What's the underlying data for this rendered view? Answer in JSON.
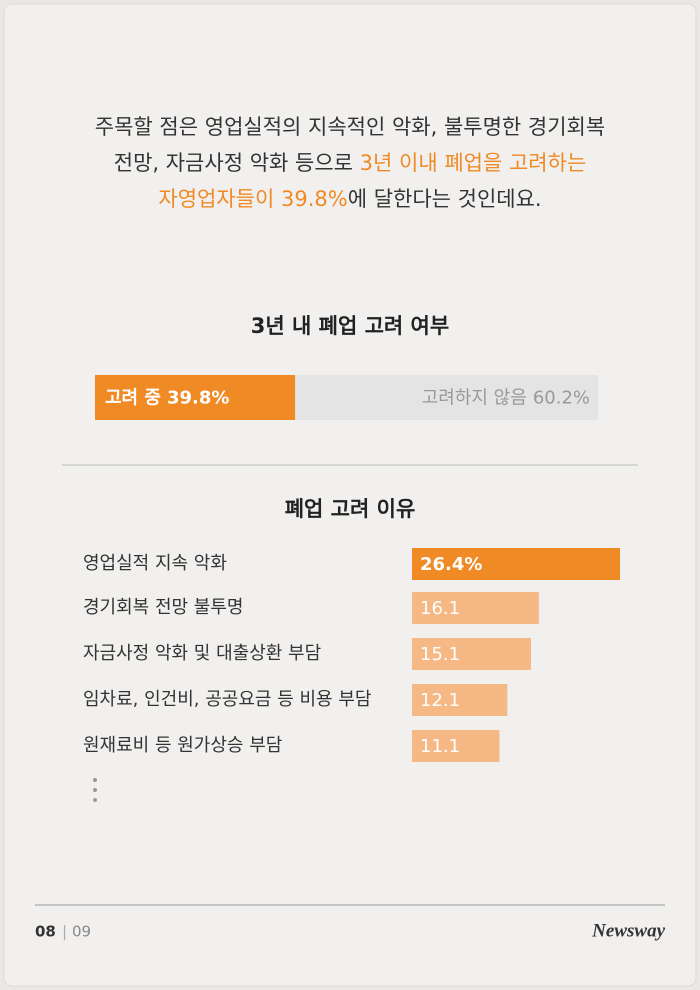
{
  "intro": {
    "lines": [
      [
        {
          "text": "주목할 점은 영업실적의 지속적인 악화, 불투명한 경기회복",
          "color": "#333333"
        }
      ],
      [
        {
          "text": "전망, 자금사정 악화 등으로 ",
          "color": "#333333"
        },
        {
          "text": "3년 이내 폐업을 고려하는",
          "color": "#f08a24"
        }
      ],
      [
        {
          "text": "자영업자들이 39.8%",
          "color": "#f08a24"
        },
        {
          "text": "에 달한다는 것인데요.",
          "color": "#333333"
        }
      ]
    ]
  },
  "chart_data": [
    {
      "type": "stacked-bar",
      "title": "3년 내 폐업 고려 여부",
      "series": [
        {
          "name": "고려 중",
          "color": "#f08a24",
          "values": [
            39.8
          ],
          "value_labels": [
            "39.8%"
          ]
        },
        {
          "name": "고려하지 않음",
          "color": "#e4e4e4",
          "values": [
            60.2
          ],
          "value_labels": [
            "60.2%"
          ]
        }
      ]
    },
    {
      "type": "bar",
      "title": "폐업 고려 이유",
      "categories": [
        "영업실적 지속 악화",
        "경기회복 전망 불투명",
        "자금사정 악화 및 대출상환 부담",
        "임차료, 인건비, 공공요금 등 비용 부담",
        "원재료비 등 원가상승 부담"
      ],
      "values": [
        26.4,
        16.1,
        15.1,
        12.1,
        11.1
      ],
      "value_labels": [
        "26.4%",
        "16.1",
        "15.1",
        "12.1",
        "11.1"
      ],
      "colors": [
        "#f08a24",
        "#f6b985",
        "#f6b985",
        "#f6b985",
        "#f6b985"
      ]
    }
  ],
  "footer": {
    "page": "08",
    "separator": "|",
    "total": "09",
    "brand": "Newsway"
  }
}
